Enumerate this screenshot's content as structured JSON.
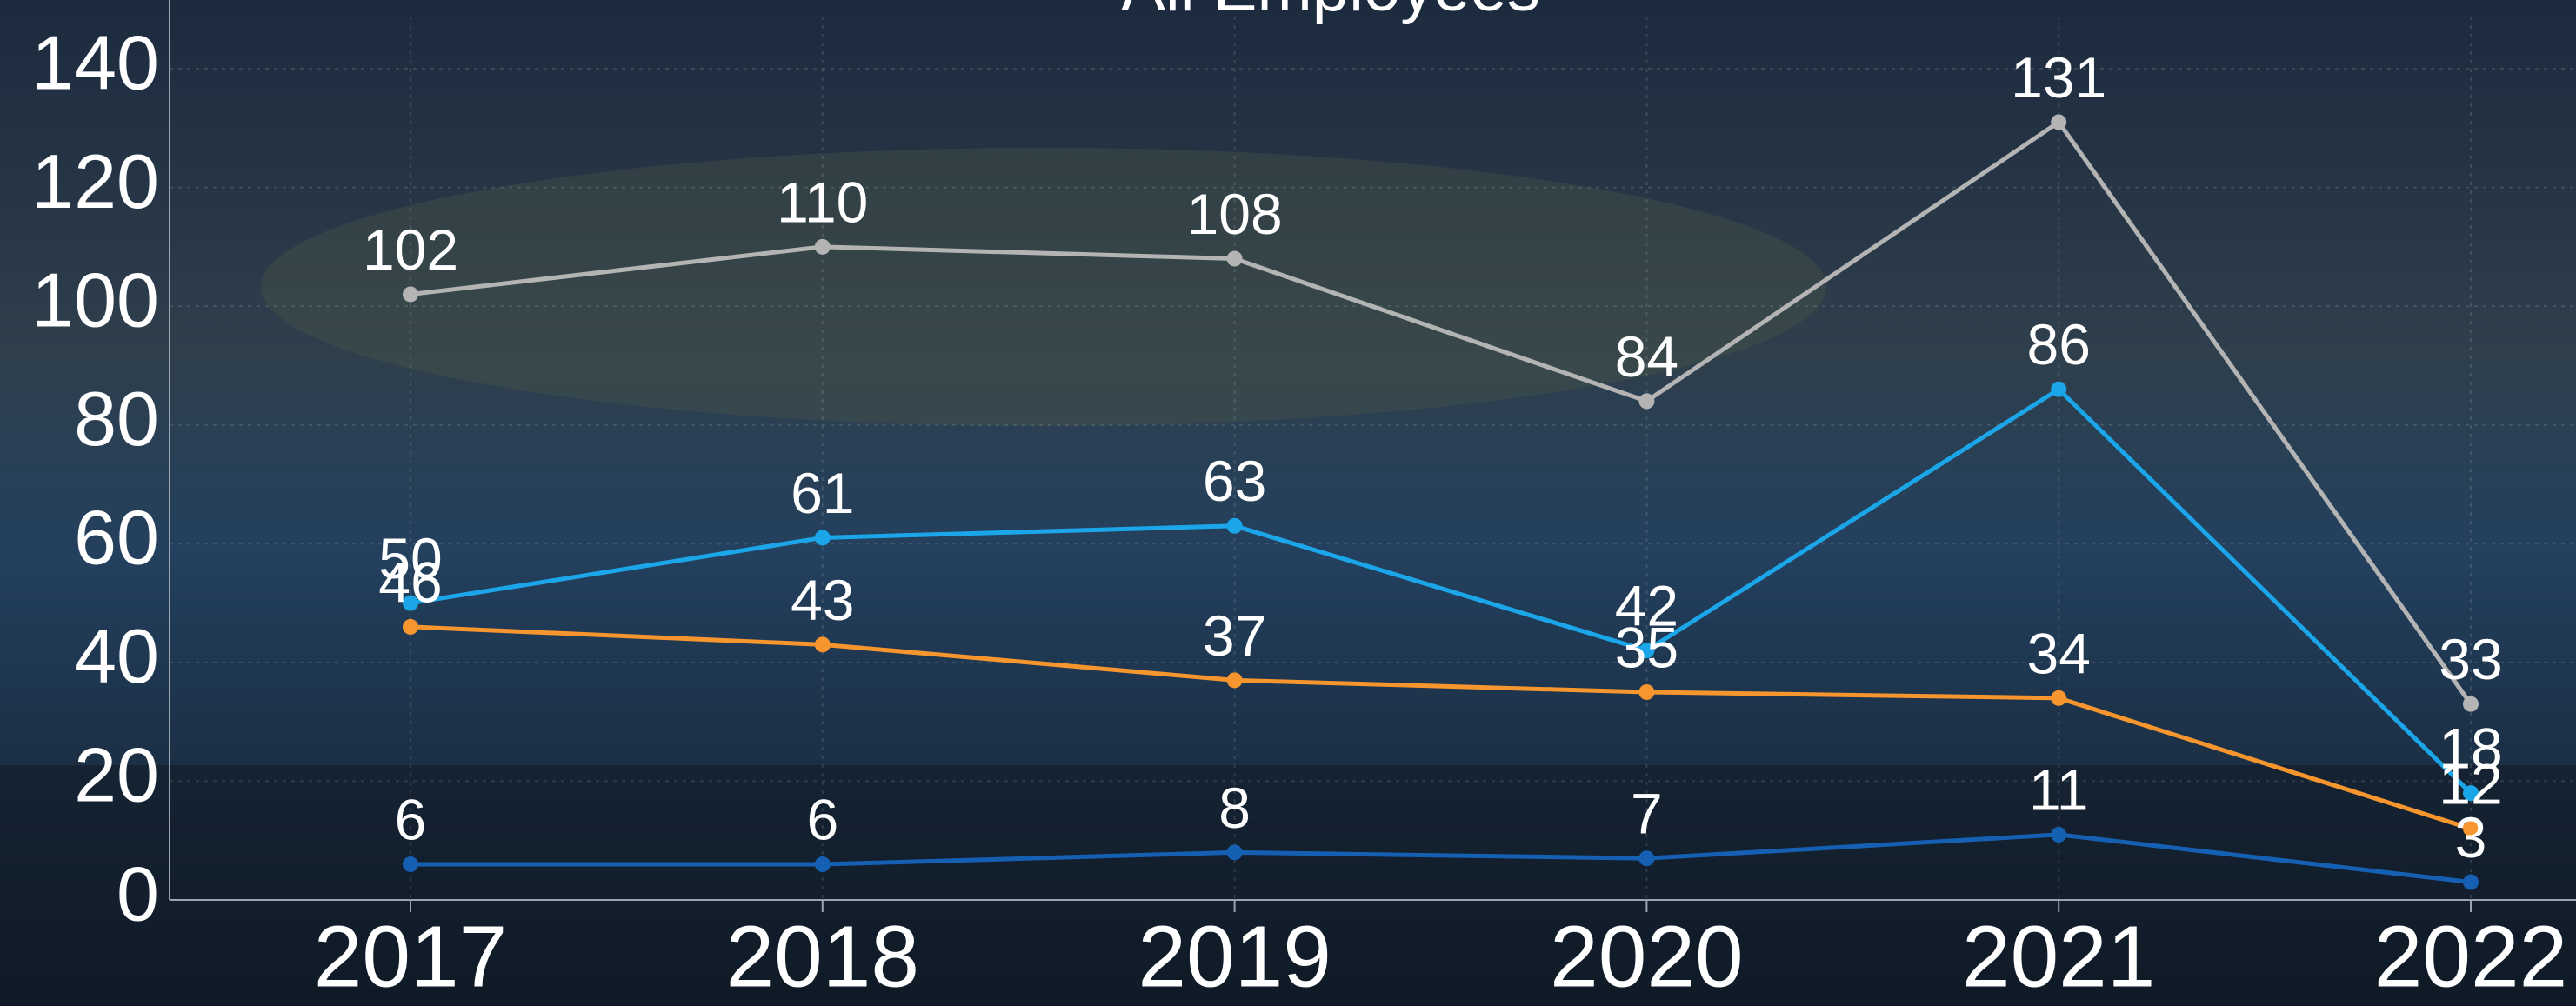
{
  "chart_data": {
    "type": "line",
    "title": "All Employees",
    "categories": [
      "2017",
      "2018",
      "2019",
      "2020",
      "2021",
      "2022"
    ],
    "series": [
      {
        "color": "#b4b4b4",
        "values": [
          102,
          110,
          108,
          84,
          131,
          33
        ]
      },
      {
        "color": "#1ba6ea",
        "values": [
          50,
          61,
          63,
          42,
          86,
          18
        ]
      },
      {
        "color": "#f7952e",
        "values": [
          46,
          43,
          37,
          35,
          34,
          12
        ]
      },
      {
        "color": "#1560b3",
        "values": [
          6,
          6,
          8,
          7,
          11,
          3
        ]
      }
    ],
    "ylim": [
      0,
      150
    ],
    "yticks": [
      0,
      20,
      40,
      60,
      80,
      100,
      120,
      140
    ],
    "grid": true
  }
}
